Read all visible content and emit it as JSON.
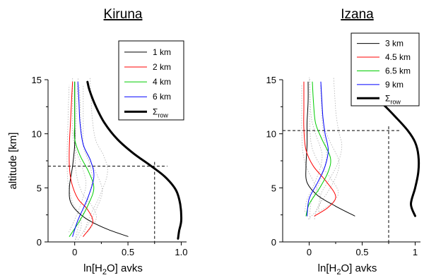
{
  "chart_data": [
    {
      "type": "line",
      "title": "Kiruna",
      "xlabel": "ln[H2O] avks",
      "ylabel": "altitude [km]",
      "xlim": [
        -0.25,
        1.05
      ],
      "ylim": [
        0,
        15
      ],
      "xticks": [
        "0",
        "0.5",
        "1.0"
      ],
      "yticks": [
        "0",
        "5",
        "10",
        "15"
      ],
      "legend_position": "top-right",
      "reference_lines": {
        "altitude": 7.0,
        "avk_value": 0.75
      },
      "series": [
        {
          "name": "1 km",
          "color": "#000000",
          "width": 1.0,
          "x": [
            0.5,
            0.3,
            0.1,
            -0.03,
            -0.05,
            -0.02,
            0.0,
            0.0,
            0.0,
            0.0
          ],
          "y": [
            0.5,
            1.2,
            2.2,
            3.5,
            5.0,
            7.0,
            9.0,
            11.0,
            13.0,
            14.8
          ]
        },
        {
          "name": "2 km",
          "color": "#ff0000",
          "width": 1.0,
          "x": [
            0.08,
            0.17,
            0.12,
            0.03,
            -0.03,
            -0.05,
            -0.05,
            -0.04,
            -0.03,
            -0.02
          ],
          "y": [
            0.5,
            1.8,
            3.0,
            4.0,
            5.5,
            7.0,
            9.0,
            11.0,
            13.0,
            14.8
          ]
        },
        {
          "name": "4 km",
          "color": "#00cc00",
          "width": 1.0,
          "x": [
            -0.05,
            0.05,
            0.13,
            0.18,
            0.13,
            0.05,
            0.0,
            0.0,
            0.0,
            0.0
          ],
          "y": [
            0.5,
            2.0,
            3.5,
            5.0,
            6.5,
            8.0,
            9.5,
            11.0,
            13.0,
            14.8
          ]
        },
        {
          "name": "6 km",
          "color": "#0000ff",
          "width": 1.0,
          "x": [
            -0.02,
            0.03,
            0.12,
            0.18,
            0.15,
            0.08,
            0.05,
            0.04,
            0.03
          ],
          "y": [
            0.5,
            2.0,
            4.0,
            6.0,
            7.5,
            9.0,
            11.0,
            13.0,
            14.8
          ]
        },
        {
          "name": "Σrow",
          "color": "#000000",
          "width": 3.0,
          "x": [
            0.97,
            0.98,
            1.0,
            0.99,
            0.95,
            0.85,
            0.72,
            0.55,
            0.4,
            0.28,
            0.2,
            0.14,
            0.12
          ],
          "y": [
            0.3,
            1.0,
            2.0,
            3.5,
            4.8,
            6.0,
            7.0,
            8.2,
            9.5,
            11.0,
            12.5,
            14.0,
            14.8
          ]
        }
      ]
    },
    {
      "type": "line",
      "title": "Izana",
      "xlabel": "ln[H2O] avks",
      "ylabel": "",
      "xlim": [
        -0.25,
        1.05
      ],
      "ylim": [
        0,
        15
      ],
      "xticks": [
        "0",
        "0.5",
        "1"
      ],
      "yticks": [
        "0",
        "5",
        "10",
        "15"
      ],
      "legend_position": "top-right",
      "reference_lines": {
        "altitude": 10.3,
        "avk_value": 0.75
      },
      "series": [
        {
          "name": "3 km",
          "color": "#000000",
          "width": 1.0,
          "x": [
            0.43,
            0.25,
            0.08,
            -0.02,
            -0.03,
            -0.02,
            -0.02,
            -0.01,
            -0.01
          ],
          "y": [
            2.4,
            3.3,
            4.3,
            5.5,
            7.0,
            9.0,
            11.0,
            13.0,
            14.8
          ]
        },
        {
          "name": "4.5 km",
          "color": "#ff0000",
          "width": 1.0,
          "x": [
            0.05,
            0.18,
            0.25,
            0.16,
            0.04,
            -0.03,
            -0.05,
            -0.05,
            -0.05
          ],
          "y": [
            2.4,
            3.2,
            4.2,
            5.6,
            7.0,
            8.5,
            10.5,
            12.5,
            14.8
          ]
        },
        {
          "name": "6.5 km",
          "color": "#00cc00",
          "width": 1.0,
          "x": [
            -0.03,
            0.0,
            0.1,
            0.18,
            0.2,
            0.12,
            0.06,
            0.04,
            0.03
          ],
          "y": [
            2.4,
            3.5,
            5.0,
            6.5,
            7.8,
            9.5,
            11.0,
            13.0,
            14.8
          ]
        },
        {
          "name": "9 km",
          "color": "#0000ff",
          "width": 1.0,
          "x": [
            -0.02,
            0.0,
            0.08,
            0.15,
            0.18,
            0.15,
            0.13,
            0.12,
            0.11
          ],
          "y": [
            2.4,
            4.0,
            5.5,
            7.0,
            8.5,
            10.0,
            11.5,
            13.0,
            14.8
          ]
        },
        {
          "name": "Σrow",
          "color": "#000000",
          "width": 3.0,
          "x": [
            1.0,
            0.96,
            1.0,
            1.03,
            1.03,
            1.0,
            0.93,
            0.82,
            0.7,
            0.57,
            0.45
          ],
          "y": [
            2.4,
            3.5,
            5.0,
            6.5,
            8.0,
            9.2,
            10.3,
            11.5,
            12.7,
            13.8,
            14.8
          ]
        }
      ]
    }
  ]
}
